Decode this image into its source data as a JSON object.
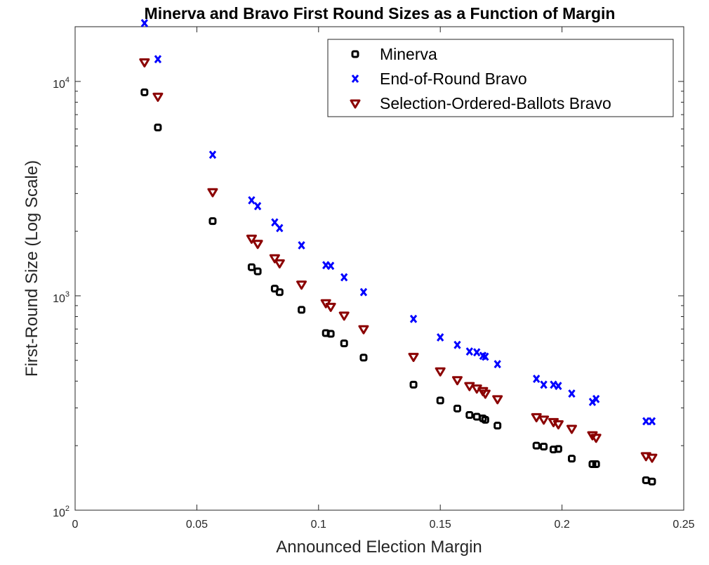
{
  "chart_data": {
    "type": "scatter",
    "title": "Minerva and Bravo First Round Sizes as a Function of Margin",
    "xlabel": "Announced Election Margin",
    "ylabel": "First-Round Size (Log Scale)",
    "xlim": [
      0,
      0.25
    ],
    "ylim": [
      100,
      18000
    ],
    "yscale": "log",
    "grid": false,
    "legend_position": "top-right",
    "x_ticks": [
      {
        "value": 0,
        "label": "0"
      },
      {
        "value": 0.05,
        "label": "0.05"
      },
      {
        "value": 0.1,
        "label": "0.1"
      },
      {
        "value": 0.15,
        "label": "0.15"
      },
      {
        "value": 0.2,
        "label": "0.2"
      },
      {
        "value": 0.25,
        "label": "0.25"
      }
    ],
    "y_ticks": [
      {
        "value": 100,
        "base": "10",
        "exp": "2"
      },
      {
        "value": 1000,
        "base": "10",
        "exp": "3"
      },
      {
        "value": 10000,
        "base": "10",
        "exp": "4"
      }
    ],
    "x": [
      0.0285,
      0.034,
      0.0565,
      0.0725,
      0.075,
      0.082,
      0.084,
      0.093,
      0.103,
      0.105,
      0.1105,
      0.1185,
      0.139,
      0.15,
      0.157,
      0.162,
      0.165,
      0.1675,
      0.1685,
      0.1735,
      0.1895,
      0.1925,
      0.1965,
      0.1985,
      0.204,
      0.2125,
      0.214,
      0.2345,
      0.237
    ],
    "series": [
      {
        "name": "Minerva",
        "marker": "square",
        "color": "#000000",
        "values": [
          8900,
          6100,
          2230,
          1360,
          1300,
          1080,
          1040,
          860,
          670,
          665,
          600,
          515,
          385,
          325,
          298,
          278,
          273,
          268,
          264,
          248,
          200,
          198,
          192,
          193,
          174,
          164,
          164,
          138,
          136
        ]
      },
      {
        "name": "End-of-Round Bravo",
        "marker": "x",
        "color": "#0000ff",
        "values": [
          18700,
          12700,
          4550,
          2790,
          2620,
          2200,
          2070,
          1720,
          1390,
          1380,
          1220,
          1040,
          780,
          640,
          590,
          550,
          545,
          525,
          520,
          480,
          410,
          385,
          385,
          380,
          350,
          320,
          330,
          260,
          260
        ]
      },
      {
        "name": "Selection-Ordered-Ballots Bravo",
        "marker": "triangle-down",
        "color": "#8b0000",
        "values": [
          12300,
          8500,
          3050,
          1850,
          1750,
          1500,
          1420,
          1130,
          925,
          890,
          810,
          700,
          520,
          445,
          405,
          380,
          370,
          360,
          350,
          330,
          272,
          265,
          258,
          252,
          240,
          224,
          218,
          179,
          176
        ]
      }
    ]
  }
}
